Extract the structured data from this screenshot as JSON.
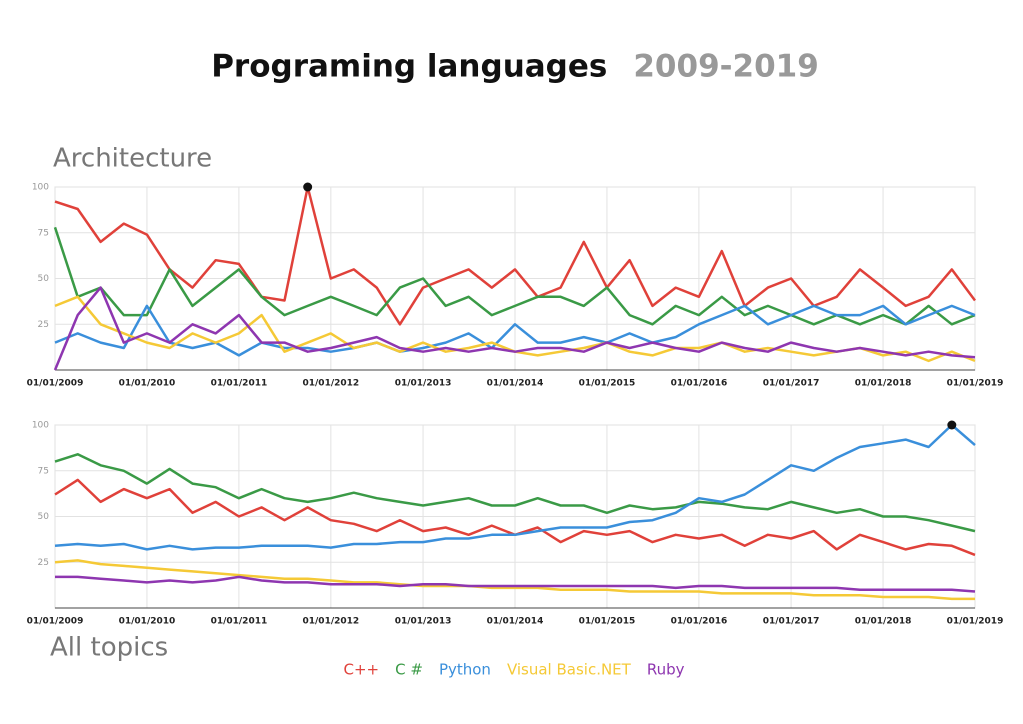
{
  "title": "Programing languages",
  "subtitle": "2009-2019",
  "chart_data": [
    {
      "type": "line",
      "title": "Architecture",
      "x": [
        "2009-01-01",
        "2009-04-01",
        "2009-07-01",
        "2009-10-01",
        "2010-01-01",
        "2010-04-01",
        "2010-07-01",
        "2010-10-01",
        "2011-01-01",
        "2011-04-01",
        "2011-07-01",
        "2011-10-01",
        "2012-01-01",
        "2012-04-01",
        "2012-07-01",
        "2012-10-01",
        "2013-01-01",
        "2013-04-01",
        "2013-07-01",
        "2013-10-01",
        "2014-01-01",
        "2014-04-01",
        "2014-07-01",
        "2014-10-01",
        "2015-01-01",
        "2015-04-01",
        "2015-07-01",
        "2015-10-01",
        "2016-01-01",
        "2016-04-01",
        "2016-07-01",
        "2016-10-01",
        "2017-01-01",
        "2017-04-01",
        "2017-07-01",
        "2017-10-01",
        "2018-01-01",
        "2018-04-01",
        "2018-07-01",
        "2018-10-01",
        "2019-01-01"
      ],
      "series": [
        {
          "color": "#e0413a",
          "values": [
            92,
            88,
            70,
            80,
            74,
            55,
            45,
            60,
            58,
            40,
            38,
            100,
            50,
            55,
            45,
            25,
            45,
            50,
            55,
            45,
            55,
            40,
            45,
            70,
            45,
            60,
            35,
            45,
            40,
            65,
            35,
            45,
            50,
            35,
            40,
            55,
            45,
            35,
            40,
            55,
            38
          ]
        },
        {
          "color": "#3a9a46",
          "values": [
            78,
            40,
            45,
            30,
            30,
            55,
            35,
            45,
            55,
            40,
            30,
            35,
            40,
            35,
            30,
            45,
            50,
            35,
            40,
            30,
            35,
            40,
            40,
            35,
            45,
            30,
            25,
            35,
            30,
            40,
            30,
            35,
            30,
            25,
            30,
            25,
            30,
            25,
            35,
            25,
            30
          ]
        },
        {
          "color": "#3a8fdb",
          "values": [
            15,
            20,
            15,
            12,
            35,
            15,
            12,
            15,
            8,
            15,
            12,
            12,
            10,
            12,
            15,
            10,
            12,
            15,
            20,
            12,
            25,
            15,
            15,
            18,
            15,
            20,
            15,
            18,
            25,
            30,
            35,
            25,
            30,
            35,
            30,
            30,
            35,
            25,
            30,
            35,
            30
          ]
        },
        {
          "color": "#f5c936",
          "values": [
            35,
            40,
            25,
            20,
            15,
            12,
            20,
            15,
            20,
            30,
            10,
            15,
            20,
            12,
            15,
            10,
            15,
            10,
            12,
            15,
            10,
            8,
            10,
            12,
            15,
            10,
            8,
            12,
            12,
            15,
            10,
            12,
            10,
            8,
            10,
            12,
            8,
            10,
            5,
            10,
            5
          ]
        },
        {
          "color": "#8e36b0",
          "values": [
            0,
            30,
            45,
            15,
            20,
            15,
            25,
            20,
            30,
            15,
            15,
            10,
            12,
            15,
            18,
            12,
            10,
            12,
            10,
            12,
            10,
            12,
            12,
            10,
            15,
            12,
            15,
            12,
            10,
            15,
            12,
            10,
            15,
            12,
            10,
            12,
            10,
            8,
            10,
            8,
            7
          ]
        }
      ],
      "xlim": [
        "2009-01-01",
        "2019-01-01"
      ],
      "xticks": [
        {
          "value": "2009-01-01",
          "label": "01/01/2009"
        },
        {
          "value": "2010-01-01",
          "label": "01/01/2010"
        },
        {
          "value": "2011-01-01",
          "label": "01/01/2011"
        },
        {
          "value": "2012-01-01",
          "label": "01/01/2012"
        },
        {
          "value": "2013-01-01",
          "label": "01/01/2013"
        },
        {
          "value": "2014-01-01",
          "label": "01/01/2014"
        },
        {
          "value": "2015-01-01",
          "label": "01/01/2015"
        },
        {
          "value": "2016-01-01",
          "label": "01/01/2016"
        },
        {
          "value": "2017-01-01",
          "label": "01/01/2017"
        },
        {
          "value": "2018-01-01",
          "label": "01/01/2018"
        },
        {
          "value": "2019-01-01",
          "label": "01/01/2019"
        }
      ],
      "ylim": [
        0,
        100
      ],
      "yticks": [
        25,
        50,
        75,
        100
      ],
      "grid": true
    },
    {
      "type": "line",
      "title": "All topics",
      "x": [
        "2009-01-01",
        "2009-04-01",
        "2009-07-01",
        "2009-10-01",
        "2010-01-01",
        "2010-04-01",
        "2010-07-01",
        "2010-10-01",
        "2011-01-01",
        "2011-04-01",
        "2011-07-01",
        "2011-10-01",
        "2012-01-01",
        "2012-04-01",
        "2012-07-01",
        "2012-10-01",
        "2013-01-01",
        "2013-04-01",
        "2013-07-01",
        "2013-10-01",
        "2014-01-01",
        "2014-04-01",
        "2014-07-01",
        "2014-10-01",
        "2015-01-01",
        "2015-04-01",
        "2015-07-01",
        "2015-10-01",
        "2016-01-01",
        "2016-04-01",
        "2016-07-01",
        "2016-10-01",
        "2017-01-01",
        "2017-04-01",
        "2017-07-01",
        "2017-10-01",
        "2018-01-01",
        "2018-04-01",
        "2018-07-01",
        "2018-10-01",
        "2019-01-01"
      ],
      "series": [
        {
          "name": "C++",
          "color": "#e0413a",
          "values": [
            62,
            70,
            58,
            65,
            60,
            65,
            52,
            58,
            50,
            55,
            48,
            55,
            48,
            46,
            42,
            48,
            42,
            44,
            40,
            45,
            40,
            44,
            36,
            42,
            40,
            42,
            36,
            40,
            38,
            40,
            34,
            40,
            38,
            42,
            32,
            40,
            36,
            32,
            35,
            34,
            29
          ]
        },
        {
          "name": "C #",
          "color": "#3a9a46",
          "values": [
            80,
            84,
            78,
            75,
            68,
            76,
            68,
            66,
            60,
            65,
            60,
            58,
            60,
            63,
            60,
            58,
            56,
            58,
            60,
            56,
            56,
            60,
            56,
            56,
            52,
            56,
            54,
            55,
            58,
            57,
            55,
            54,
            58,
            55,
            52,
            54,
            50,
            50,
            48,
            45,
            42
          ]
        },
        {
          "name": "Python",
          "color": "#3a8fdb",
          "values": [
            34,
            35,
            34,
            35,
            32,
            34,
            32,
            33,
            33,
            34,
            34,
            34,
            33,
            35,
            35,
            36,
            36,
            38,
            38,
            40,
            40,
            42,
            44,
            44,
            44,
            47,
            48,
            52,
            60,
            58,
            62,
            70,
            78,
            75,
            82,
            88,
            90,
            92,
            88,
            100,
            89
          ]
        },
        {
          "name": "Visual Basic.NET",
          "color": "#f5c936",
          "values": [
            25,
            26,
            24,
            23,
            22,
            21,
            20,
            19,
            18,
            17,
            16,
            16,
            15,
            14,
            14,
            13,
            12,
            12,
            12,
            11,
            11,
            11,
            10,
            10,
            10,
            9,
            9,
            9,
            9,
            8,
            8,
            8,
            8,
            7,
            7,
            7,
            6,
            6,
            6,
            5,
            5
          ]
        },
        {
          "name": "Ruby",
          "color": "#8e36b0",
          "values": [
            17,
            17,
            16,
            15,
            14,
            15,
            14,
            15,
            17,
            15,
            14,
            14,
            13,
            13,
            13,
            12,
            13,
            13,
            12,
            12,
            12,
            12,
            12,
            12,
            12,
            12,
            12,
            11,
            12,
            12,
            11,
            11,
            11,
            11,
            11,
            10,
            10,
            10,
            10,
            10,
            9
          ]
        }
      ],
      "xlim": [
        "2009-01-01",
        "2019-01-01"
      ],
      "xticks": [
        {
          "value": "2009-01-01",
          "label": "01/01/2009"
        },
        {
          "value": "2010-01-01",
          "label": "01/01/2010"
        },
        {
          "value": "2011-01-01",
          "label": "01/01/2011"
        },
        {
          "value": "2012-01-01",
          "label": "01/01/2012"
        },
        {
          "value": "2013-01-01",
          "label": "01/01/2013"
        },
        {
          "value": "2014-01-01",
          "label": "01/01/2014"
        },
        {
          "value": "2015-01-01",
          "label": "01/01/2015"
        },
        {
          "value": "2016-01-01",
          "label": "01/01/2016"
        },
        {
          "value": "2017-01-01",
          "label": "01/01/2017"
        },
        {
          "value": "2018-01-01",
          "label": "01/01/2018"
        },
        {
          "value": "2019-01-01",
          "label": "01/01/2019"
        }
      ],
      "ylim": [
        0,
        100
      ],
      "yticks": [
        25,
        50,
        75,
        100
      ],
      "grid": true
    }
  ]
}
